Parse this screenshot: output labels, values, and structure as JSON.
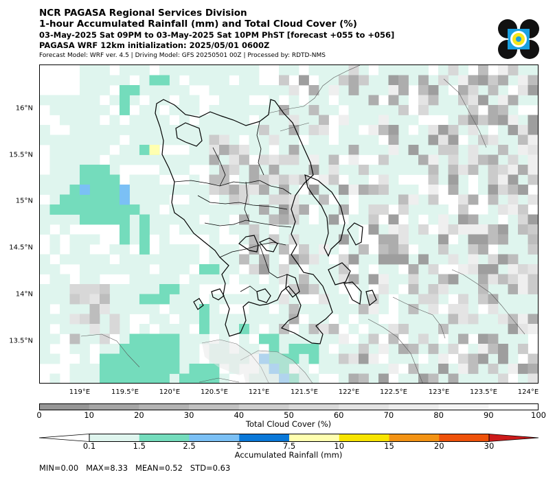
{
  "header": {
    "line1": "NCR PAGASA Regional Services Division",
    "line2": "1-hour Accumulated Rainfall (mm) and Total Cloud Cover (%)",
    "line3": "03-May-2025 Sat 09PM to 03-May-2025 Sat 10PM PhST [forecast +055 to +056]",
    "line4": "PAGASA WRF 12km initialization: 2025/05/01 0600Z",
    "line5": "Forecast Model: WRF ver. 4.5 | Driving Model: GFS 20250501 00Z | Processed by: RDTD-NMS"
  },
  "logo": {
    "name": "pagasa-logo-icon",
    "colors": [
      "#111111",
      "#1aa0e0",
      "#f5e51b"
    ]
  },
  "map": {
    "lat_labels": [
      "16°N",
      "15.5°N",
      "15°N",
      "14.5°N",
      "14°N",
      "13.5°N"
    ],
    "lon_labels": [
      "119°E",
      "119.5°E",
      "120°E",
      "120.5°E",
      "121°E",
      "121.5°E",
      "122°E",
      "122.5°E",
      "123°E",
      "123.5°E",
      "124°E"
    ]
  },
  "cloud_colorbar": {
    "title": "Total Cloud Cover (%)",
    "ticks": [
      "0",
      "10",
      "20",
      "30",
      "40",
      "50",
      "60",
      "70",
      "80",
      "90",
      "100"
    ],
    "colors": [
      "#969696",
      "#a5a5a5",
      "#b3b3b3",
      "#c1c1c1",
      "#cecece",
      "#d9d9d9",
      "#e3e3e3",
      "#ececec",
      "#f4f4f4",
      "#ffffff"
    ]
  },
  "rain_colorbar": {
    "title": "Accumulated Rainfall (mm)",
    "ticks": [
      "0.1",
      "1.5",
      "2.5",
      "5",
      "7.5",
      "10",
      "15",
      "20",
      "30"
    ],
    "colors": [
      "#ffffff",
      "#dff5ee",
      "#74dcbc",
      "#7bc0f5",
      "#0a78d8",
      "#ffffb0",
      "#f8e400",
      "#f39314",
      "#ee520a",
      "#cc1a1a"
    ]
  },
  "stats": {
    "text": "MIN=0.00   MAX=8.33   MEAN=0.52   STD=0.63"
  }
}
